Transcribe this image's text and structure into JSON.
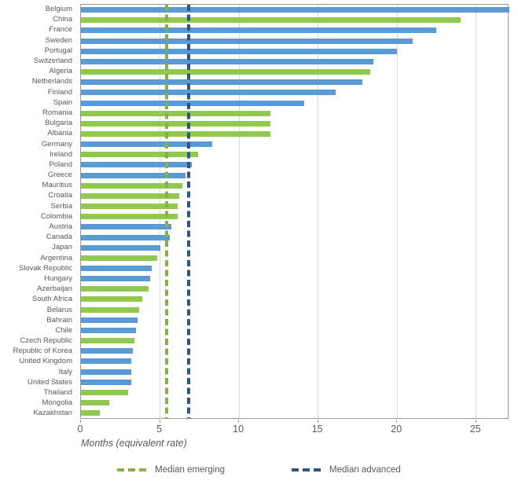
{
  "chart_data": {
    "type": "bar",
    "orientation": "horizontal",
    "title": "",
    "xlabel": "Months (equivalent rate)",
    "ylabel": "",
    "xlim": [
      0,
      27.1
    ],
    "xticks": [
      "0",
      "5",
      "10",
      "15",
      "20",
      "25"
    ],
    "xtick_values": [
      0,
      5,
      10,
      15,
      20,
      25
    ],
    "grid": true,
    "group_colors": {
      "advanced": "#5B9BD5",
      "emerging": "#90C850"
    },
    "countries": [
      {
        "name": "Belgium",
        "value": 27.1,
        "group": "advanced",
        "clipped": true
      },
      {
        "name": "China",
        "value": 24.0,
        "group": "emerging"
      },
      {
        "name": "France",
        "value": 22.5,
        "group": "advanced"
      },
      {
        "name": "Sweden",
        "value": 21.0,
        "group": "advanced"
      },
      {
        "name": "Portugal",
        "value": 20.0,
        "group": "advanced"
      },
      {
        "name": "Switzerland",
        "value": 18.5,
        "group": "advanced"
      },
      {
        "name": "Algeria",
        "value": 18.3,
        "group": "emerging"
      },
      {
        "name": "Netherlands",
        "value": 17.8,
        "group": "advanced"
      },
      {
        "name": "Finland",
        "value": 16.1,
        "group": "advanced"
      },
      {
        "name": "Spain",
        "value": 14.1,
        "group": "advanced"
      },
      {
        "name": "Romania",
        "value": 12.0,
        "group": "emerging"
      },
      {
        "name": "Bulgaria",
        "value": 12.0,
        "group": "emerging"
      },
      {
        "name": "Albania",
        "value": 12.0,
        "group": "emerging"
      },
      {
        "name": "Germany",
        "value": 8.3,
        "group": "advanced"
      },
      {
        "name": "Ireland",
        "value": 7.4,
        "group": "emerging"
      },
      {
        "name": "Poland",
        "value": 7.0,
        "group": "advanced"
      },
      {
        "name": "Greece",
        "value": 6.6,
        "group": "advanced"
      },
      {
        "name": "Mauritius",
        "value": 6.4,
        "group": "emerging"
      },
      {
        "name": "Croatia",
        "value": 6.2,
        "group": "emerging"
      },
      {
        "name": "Serbia",
        "value": 6.1,
        "group": "emerging"
      },
      {
        "name": "Colombia",
        "value": 6.1,
        "group": "emerging"
      },
      {
        "name": "Austria",
        "value": 5.7,
        "group": "advanced"
      },
      {
        "name": "Canada",
        "value": 5.6,
        "group": "advanced"
      },
      {
        "name": "Japan",
        "value": 5.0,
        "group": "advanced"
      },
      {
        "name": "Argentina",
        "value": 4.8,
        "group": "emerging"
      },
      {
        "name": "Slovak Republic",
        "value": 4.5,
        "group": "advanced"
      },
      {
        "name": "Hungary",
        "value": 4.4,
        "group": "advanced"
      },
      {
        "name": "Azerbaijan",
        "value": 4.3,
        "group": "emerging"
      },
      {
        "name": "South Africa",
        "value": 3.9,
        "group": "emerging"
      },
      {
        "name": "Belarus",
        "value": 3.7,
        "group": "emerging"
      },
      {
        "name": "Bahrain",
        "value": 3.6,
        "group": "advanced"
      },
      {
        "name": "Chile",
        "value": 3.5,
        "group": "advanced"
      },
      {
        "name": "Czech Republic",
        "value": 3.4,
        "group": "emerging"
      },
      {
        "name": "Republic of Korea",
        "value": 3.3,
        "group": "advanced"
      },
      {
        "name": "United Kingdom",
        "value": 3.2,
        "group": "advanced"
      },
      {
        "name": "Italy",
        "value": 3.2,
        "group": "advanced"
      },
      {
        "name": "United States",
        "value": 3.2,
        "group": "advanced"
      },
      {
        "name": "Thailand",
        "value": 3.0,
        "group": "emerging"
      },
      {
        "name": "Mongolia",
        "value": 1.8,
        "group": "emerging"
      },
      {
        "name": "Kazakhstan",
        "value": 1.2,
        "group": "emerging"
      }
    ],
    "medians": [
      {
        "label": "Median emerging",
        "value": 5.4,
        "color": "#86B14A"
      },
      {
        "label": "Median advanced",
        "value": 6.8,
        "color": "#2C5784"
      }
    ],
    "legend_position": "bottom-center"
  }
}
